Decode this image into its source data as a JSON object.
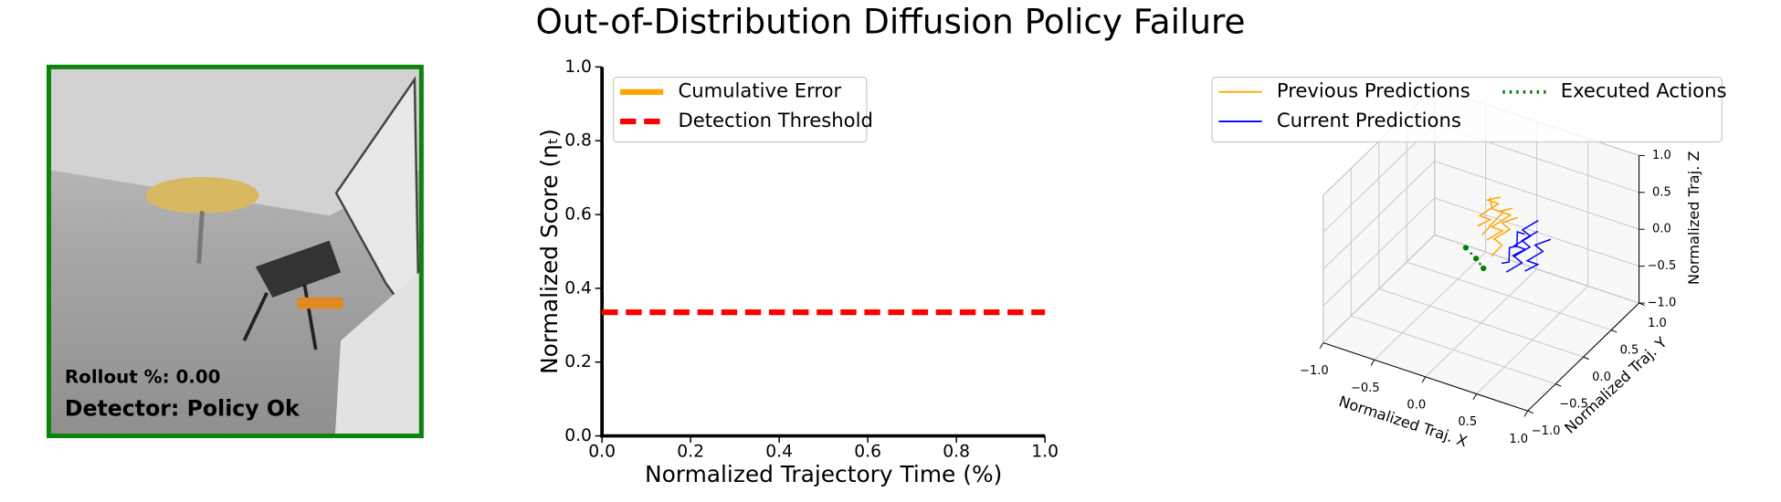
{
  "title": "Out-of-Distribution Diffusion Policy Failure",
  "camera_panel": {
    "rollout_label": "Rollout %: 0.00",
    "detector_label": "Detector: Policy Ok",
    "border_color": "#0a840a"
  },
  "chart_data": [
    {
      "type": "line",
      "xlabel": "Normalized Trajectory Time (%)",
      "ylabel": "Normalized Score (ηₜ)",
      "x": [
        0,
        1
      ],
      "series": [
        {
          "name": "Cumulative Error",
          "color": "orange",
          "linestyle": "solid",
          "values": [
            null,
            null
          ]
        },
        {
          "name": "Detection Threshold",
          "color": "red",
          "linestyle": "dashed",
          "values": [
            0.335,
            0.335
          ]
        }
      ],
      "xlim": [
        0,
        1
      ],
      "ylim": [
        0,
        1
      ],
      "xticks": [
        {
          "value": 0,
          "label": "0.0"
        },
        0.2,
        0.4,
        0.6,
        0.8,
        {
          "value": 1,
          "label": "1.0"
        }
      ],
      "yticks": [
        {
          "value": 0,
          "label": "0.0"
        },
        0.2,
        0.4,
        0.6,
        0.8,
        {
          "value": 1,
          "label": "1.0"
        }
      ],
      "legend": "upper left"
    },
    {
      "type": "line3d",
      "xlabel": "Normalized Traj. X",
      "ylabel": "Normalized Traj. Y",
      "zlabel": "Normalized Traj. Z",
      "xlim": [
        -1,
        1
      ],
      "ylim": [
        -1,
        1
      ],
      "zlim": [
        -1,
        1
      ],
      "xticks": [
        {
          "value": -1,
          "label": "−1.0"
        },
        {
          "value": -0.5,
          "label": "−0.5"
        },
        {
          "value": 0,
          "label": "0.0"
        },
        0.5,
        {
          "value": 1,
          "label": "1.0"
        }
      ],
      "yticks": [
        {
          "value": -1,
          "label": "−1.0"
        },
        {
          "value": -0.5,
          "label": "−0.5"
        },
        {
          "value": 0,
          "label": "0.0"
        },
        0.5,
        {
          "value": 1,
          "label": "1.0"
        }
      ],
      "zticks": [
        {
          "value": -1,
          "label": "−1.0"
        },
        {
          "value": -0.5,
          "label": "−0.5"
        },
        {
          "value": 0,
          "label": "0.0"
        },
        0.5,
        {
          "value": 1,
          "label": "1.0"
        }
      ],
      "grid": true,
      "legend": "upper right",
      "series": [
        {
          "name": "Previous Predictions",
          "color": "orange",
          "linestyle": "solid",
          "trajectories": [
            {
              "x": [
                -0.1,
                -0.05,
                0.0,
                0.05,
                0.0,
                -0.05
              ],
              "y": [
                0.2,
                0.25,
                0.15,
                0.3,
                0.2,
                0.25
              ],
              "z": [
                0.0,
                0.1,
                0.2,
                0.3,
                0.4,
                0.5
              ]
            },
            {
              "x": [
                0.0,
                0.1,
                0.05,
                0.15,
                0.1,
                0.2
              ],
              "y": [
                0.1,
                0.2,
                0.1,
                0.25,
                0.15,
                0.2
              ],
              "z": [
                0.05,
                0.15,
                0.25,
                0.35,
                0.45,
                0.5
              ]
            },
            {
              "x": [
                -0.2,
                -0.1,
                -0.15,
                -0.05,
                -0.1,
                0.0
              ],
              "y": [
                0.3,
                0.35,
                0.25,
                0.4,
                0.3,
                0.35
              ],
              "z": [
                0.0,
                0.1,
                0.2,
                0.3,
                0.4,
                0.45
              ]
            },
            {
              "x": [
                0.1,
                0.15,
                0.1,
                0.2,
                0.15,
                0.25
              ],
              "y": [
                0.0,
                0.1,
                0.05,
                0.15,
                0.1,
                0.2
              ],
              "z": [
                -0.05,
                0.05,
                0.15,
                0.25,
                0.35,
                0.4
              ]
            }
          ]
        },
        {
          "name": "Current Predictions",
          "color": "blue",
          "linestyle": "solid",
          "trajectories": [
            {
              "x": [
                0.2,
                0.3,
                0.25,
                0.35,
                0.3,
                0.4
              ],
              "y": [
                0.0,
                -0.05,
                0.05,
                0.0,
                0.1,
                0.05
              ],
              "z": [
                -0.1,
                0.0,
                0.1,
                0.2,
                0.3,
                0.35
              ]
            },
            {
              "x": [
                0.3,
                0.4,
                0.35,
                0.45,
                0.4,
                0.5
              ],
              "y": [
                -0.1,
                0.0,
                -0.05,
                0.05,
                0.0,
                0.1
              ],
              "z": [
                -0.1,
                0.0,
                0.1,
                0.2,
                0.3,
                0.4
              ]
            },
            {
              "x": [
                0.4,
                0.5,
                0.45,
                0.55,
                0.5,
                0.6
              ],
              "y": [
                0.05,
                0.1,
                0.0,
                0.1,
                0.05,
                0.15
              ],
              "z": [
                -0.15,
                -0.05,
                0.05,
                0.15,
                0.25,
                0.3
              ]
            },
            {
              "x": [
                0.25,
                0.35,
                0.3,
                0.4,
                0.35,
                0.45
              ],
              "y": [
                0.1,
                0.15,
                0.05,
                0.15,
                0.1,
                0.2
              ],
              "z": [
                -0.05,
                0.05,
                0.15,
                0.25,
                0.35,
                0.45
              ]
            }
          ]
        },
        {
          "name": "Executed Actions",
          "color": "green",
          "linestyle": "dotted",
          "trajectories": [
            {
              "x": [
                -0.15,
                -0.05,
                0.05
              ],
              "y": [
                0.0,
                0.0,
                -0.05
              ],
              "z": [
                -0.05,
                -0.15,
                -0.2
              ]
            }
          ]
        }
      ]
    }
  ]
}
